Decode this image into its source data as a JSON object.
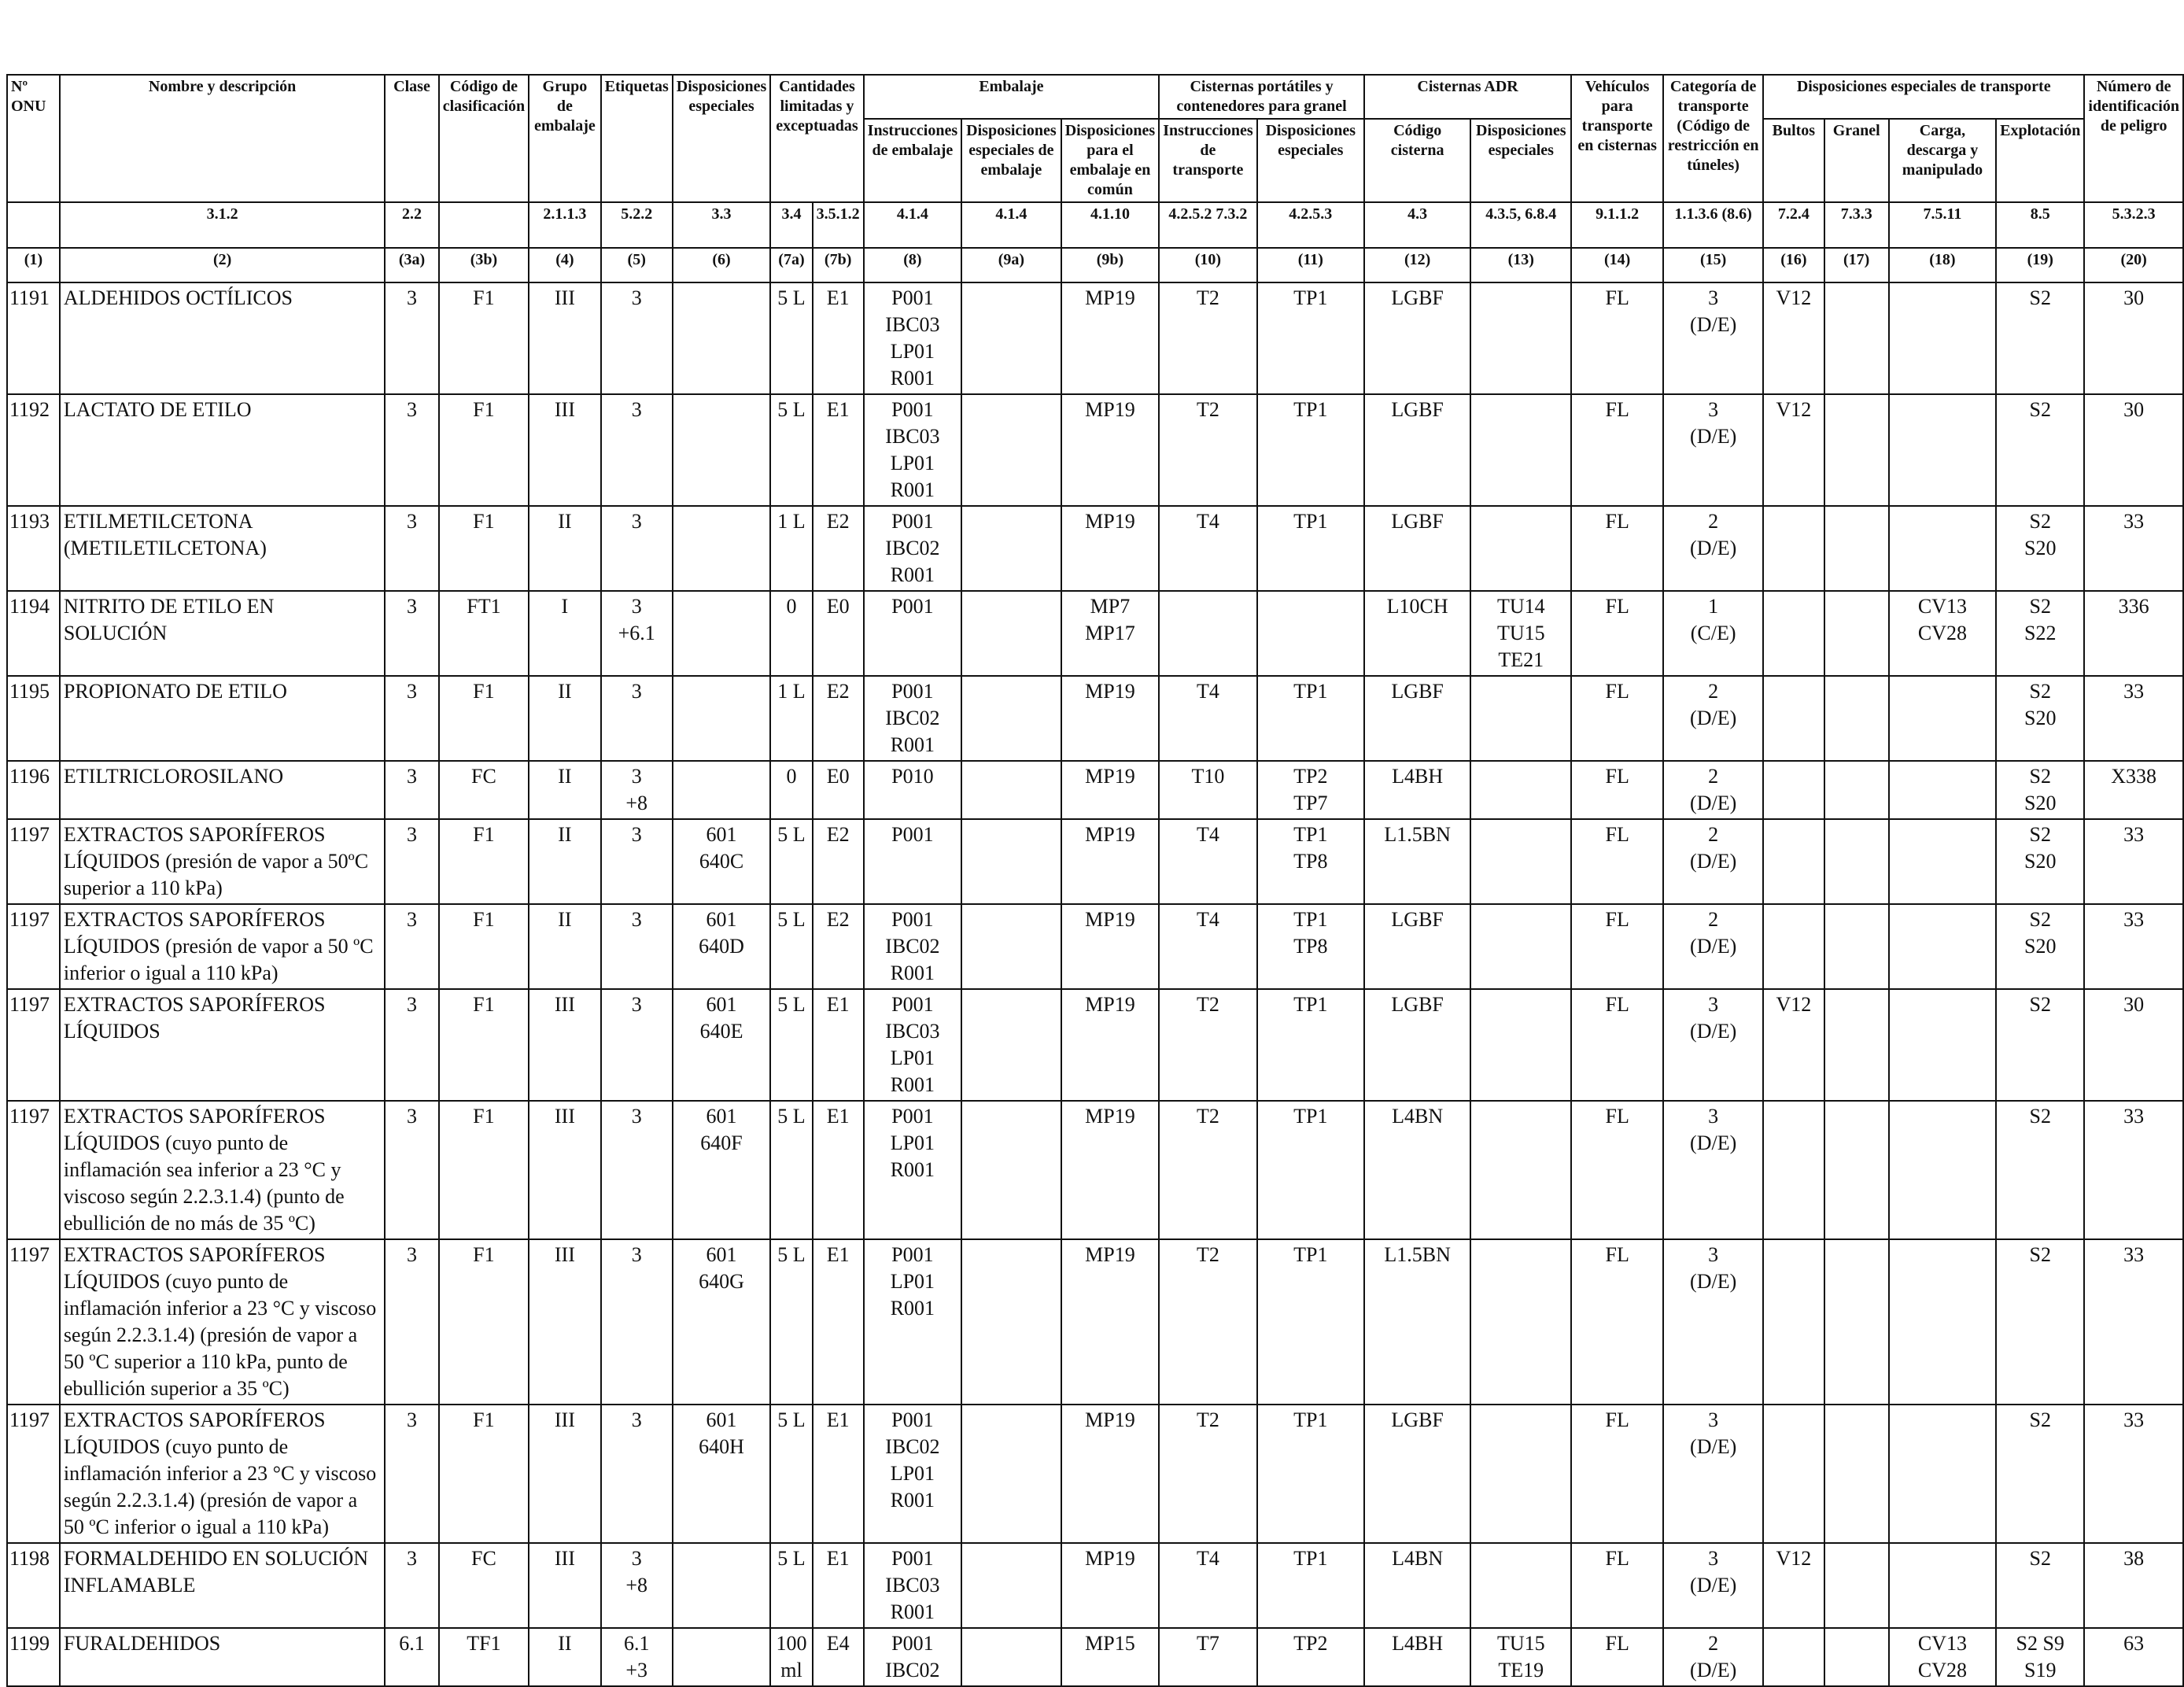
{
  "headers": {
    "onu": "Nº ONU",
    "nombre": "Nombre y descripción",
    "clase": "Clase",
    "codigo": "Código de clasificación",
    "grupo": "Grupo de embalaje",
    "etiquetas": "Etiquetas",
    "disposiciones": "Disposiciones especiales",
    "cantidades": "Cantidades limitadas y exceptuadas",
    "embalaje": "Embalaje",
    "emb_instr": "Instrucciones de embalaje",
    "emb_disp": "Disposiciones especiales de embalaje",
    "emb_comun": "Disposiciones para el embalaje en común",
    "cisternas_port": "Cisternas portátiles y contenedores para granel",
    "cp_instr": "Instrucciones de transporte",
    "cp_disp": "Disposiciones especiales",
    "cisternas_adr": "Cisternas ADR",
    "adr_codigo": "Código cisterna",
    "adr_disp": "Disposiciones especiales",
    "vehiculos": "Vehículos para transporte en cisternas",
    "categoria": "Categoría de transporte (Código de restricción en túneles)",
    "disp_transporte": "Disposiciones especiales de transporte",
    "bultos": "Bultos",
    "granel": "Granel",
    "carga": "Carga, descarga y manipulado",
    "explotacion": "Explotación",
    "numero_peligro": "Número de identificación de peligro"
  },
  "refs": [
    "",
    "3.1.2",
    "2.2",
    "2.1.1.3",
    "5.2.2",
    "3.3",
    "3.4",
    "3.5.1.2",
    "4.1.4",
    "4.1.4",
    "4.1.10",
    "4.2.5.2 7.3.2",
    "4.2.5.3",
    "4.3",
    "4.3.5, 6.8.4",
    "9.1.1.2",
    "1.1.3.6 (8.6)",
    "7.2.4",
    "7.3.3",
    "7.5.11",
    "8.5",
    "5.3.2.3"
  ],
  "colnums": [
    "(1)",
    "(2)",
    "(3a)",
    "(3b)",
    "(4)",
    "(5)",
    "(6)",
    "(7a)",
    "(7b)",
    "(8)",
    "(9a)",
    "(9b)",
    "(10)",
    "(11)",
    "(12)",
    "(13)",
    "(14)",
    "(15)",
    "(16)",
    "(17)",
    "(18)",
    "(19)",
    "(20)"
  ],
  "rows": [
    [
      "1191",
      "ALDEHIDOS OCTÍLICOS",
      "3",
      "F1",
      "III",
      "3",
      "",
      "5 L",
      "E1",
      "P001\nIBC03\nLP01\nR001",
      "",
      "MP19",
      "T2",
      "TP1",
      "LGBF",
      "",
      "FL",
      "3\n(D/E)",
      "V12",
      "",
      "",
      "S2",
      "30"
    ],
    [
      "1192",
      "LACTATO DE ETILO",
      "3",
      "F1",
      "III",
      "3",
      "",
      "5 L",
      "E1",
      "P001\nIBC03\nLP01\nR001",
      "",
      "MP19",
      "T2",
      "TP1",
      "LGBF",
      "",
      "FL",
      "3\n(D/E)",
      "V12",
      "",
      "",
      "S2",
      "30"
    ],
    [
      "1193",
      "ETILMETILCETONA\n(METILETILCETONA)",
      "3",
      "F1",
      "II",
      "3",
      "",
      "1 L",
      "E2",
      "P001\nIBC02\nR001",
      "",
      "MP19",
      "T4",
      "TP1",
      "LGBF",
      "",
      "FL",
      "2\n(D/E)",
      "",
      "",
      "",
      "S2\nS20",
      "33"
    ],
    [
      "1194",
      "NITRITO DE ETILO EN SOLUCIÓN",
      "3",
      "FT1",
      "I",
      "3\n+6.1",
      "",
      "0",
      "E0",
      "P001",
      "",
      "MP7\nMP17",
      "",
      "",
      "L10CH",
      "TU14\nTU15\nTE21",
      "FL",
      "1\n(C/E)",
      "",
      "",
      "CV13\nCV28",
      "S2\nS22",
      "336"
    ],
    [
      "1195",
      "PROPIONATO DE ETILO",
      "3",
      "F1",
      "II",
      "3",
      "",
      "1 L",
      "E2",
      "P001\nIBC02\nR001",
      "",
      "MP19",
      "T4",
      "TP1",
      "LGBF",
      "",
      "FL",
      "2\n(D/E)",
      "",
      "",
      "",
      "S2\nS20",
      "33"
    ],
    [
      "1196",
      "ETILTRICLOROSILANO",
      "3",
      "FC",
      "II",
      "3\n+8",
      "",
      "0",
      "E0",
      "P010",
      "",
      "MP19",
      "T10",
      "TP2\nTP7",
      "L4BH",
      "",
      "FL",
      "2\n(D/E)",
      "",
      "",
      "",
      "S2\nS20",
      "X338"
    ],
    [
      "1197",
      "EXTRACTOS SAPORÍFEROS LÍQUIDOS (presión de vapor a 50ºC superior a 110 kPa)",
      "3",
      "F1",
      "II",
      "3",
      "601\n640C",
      "5 L",
      "E2",
      "P001",
      "",
      "MP19",
      "T4",
      "TP1\nTP8",
      "L1.5BN",
      "",
      "FL",
      "2\n(D/E)",
      "",
      "",
      "",
      "S2\nS20",
      "33"
    ],
    [
      "1197",
      "EXTRACTOS SAPORÍFEROS LÍQUIDOS (presión de vapor a 50 ºC inferior o igual a 110 kPa)",
      "3",
      "F1",
      "II",
      "3",
      "601\n640D",
      "5 L",
      "E2",
      "P001\nIBC02\nR001",
      "",
      "MP19",
      "T4",
      "TP1\nTP8",
      "LGBF",
      "",
      "FL",
      "2\n(D/E)",
      "",
      "",
      "",
      "S2\nS20",
      "33"
    ],
    [
      "1197",
      "EXTRACTOS SAPORÍFEROS LÍQUIDOS",
      "3",
      "F1",
      "III",
      "3",
      "601\n640E",
      "5 L",
      "E1",
      "P001\nIBC03\nLP01\nR001",
      "",
      "MP19",
      "T2",
      "TP1",
      "LGBF",
      "",
      "FL",
      "3\n(D/E)",
      "V12",
      "",
      "",
      "S2",
      "30"
    ],
    [
      "1197",
      "EXTRACTOS SAPORÍFEROS LÍQUIDOS (cuyo punto de inflamación sea inferior a 23 °C y viscoso según 2.2.3.1.4) (punto de ebullición de no más de 35 ºC)",
      "3",
      "F1",
      "III",
      "3",
      "601\n640F",
      "5 L",
      "E1",
      "P001\nLP01\nR001",
      "",
      "MP19",
      "T2",
      "TP1",
      "L4BN",
      "",
      "FL",
      "3\n(D/E)",
      "",
      "",
      "",
      "S2",
      "33"
    ],
    [
      "1197",
      "EXTRACTOS SAPORÍFEROS LÍQUIDOS (cuyo punto de inflamación inferior a 23 °C y viscoso según 2.2.3.1.4) (presión de vapor a 50 ºC superior a 110 kPa, punto de ebullición superior a 35 ºC)",
      "3",
      "F1",
      "III",
      "3",
      "601\n640G",
      "5 L",
      "E1",
      "P001\nLP01\nR001",
      "",
      "MP19",
      "T2",
      "TP1",
      "L1.5BN",
      "",
      "FL",
      "3\n(D/E)",
      "",
      "",
      "",
      "S2",
      "33"
    ],
    [
      "1197",
      "EXTRACTOS SAPORÍFEROS LÍQUIDOS (cuyo punto de inflamación inferior a 23 °C y viscoso según 2.2.3.1.4) (presión de vapor a 50 ºC inferior o igual a 110 kPa)",
      "3",
      "F1",
      "III",
      "3",
      "601\n640H",
      "5 L",
      "E1",
      "P001\nIBC02\nLP01\nR001",
      "",
      "MP19",
      "T2",
      "TP1",
      "LGBF",
      "",
      "FL",
      "3\n(D/E)",
      "",
      "",
      "",
      "S2",
      "33"
    ],
    [
      "1198",
      "FORMALDEHIDO EN SOLUCIÓN INFLAMABLE",
      "3",
      "FC",
      "III",
      "3\n+8",
      "",
      "5 L",
      "E1",
      "P001\nIBC03\nR001",
      "",
      "MP19",
      "T4",
      "TP1",
      "L4BN",
      "",
      "FL",
      "3\n(D/E)",
      "V12",
      "",
      "",
      "S2",
      "38"
    ],
    [
      "1199",
      "FURALDEHIDOS",
      "6.1",
      "TF1",
      "II",
      "6.1\n+3",
      "",
      "100\nml",
      "E4",
      "P001\nIBC02",
      "",
      "MP15",
      "T7",
      "TP2",
      "L4BH",
      "TU15\nTE19",
      "FL",
      "2\n(D/E)",
      "",
      "",
      "CV13\nCV28",
      "S2 S9\nS19",
      "63"
    ]
  ]
}
